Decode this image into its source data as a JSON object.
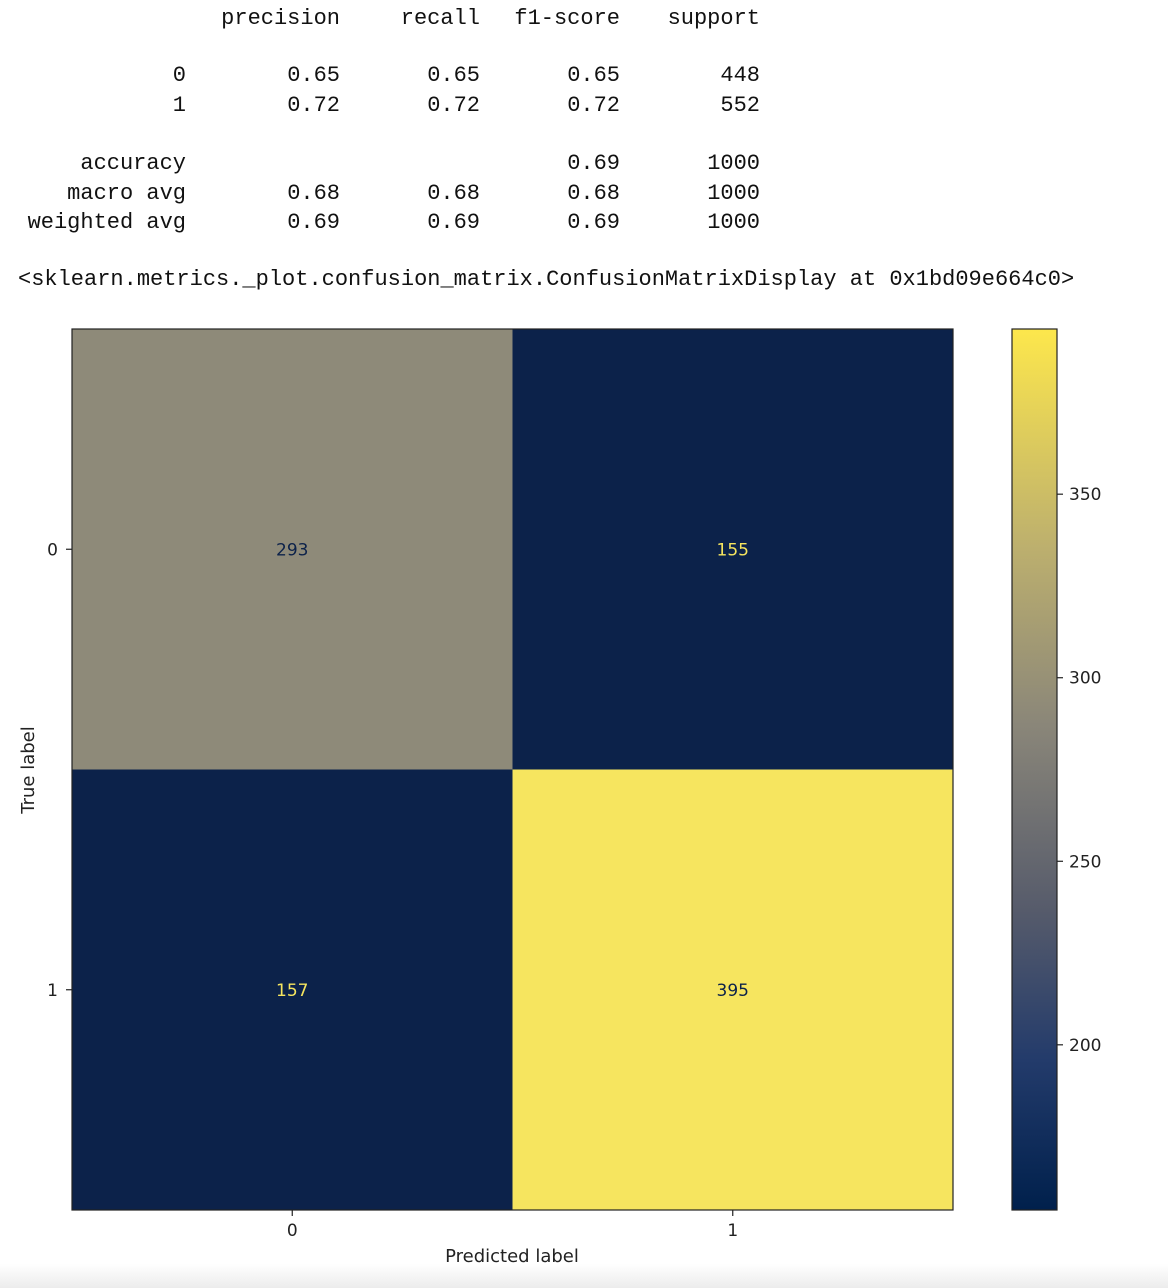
{
  "classification_report": {
    "columns": [
      "precision",
      "recall",
      "f1-score",
      "support"
    ],
    "rows": [
      {
        "label": "0",
        "precision": "0.65",
        "recall": "0.65",
        "f1": "0.65",
        "support": "448"
      },
      {
        "label": "1",
        "precision": "0.72",
        "recall": "0.72",
        "f1": "0.72",
        "support": "552"
      }
    ],
    "summary": [
      {
        "label": "accuracy",
        "precision": "",
        "recall": "",
        "f1": "0.69",
        "support": "1000"
      },
      {
        "label": "macro avg",
        "precision": "0.68",
        "recall": "0.68",
        "f1": "0.68",
        "support": "1000"
      },
      {
        "label": "weighted avg",
        "precision": "0.69",
        "recall": "0.69",
        "f1": "0.69",
        "support": "1000"
      }
    ]
  },
  "display_repr": "<sklearn.metrics._plot.confusion_matrix.ConfusionMatrixDisplay at 0x1bd09e664c0>",
  "chart_data": {
    "type": "heatmap",
    "title": "",
    "xlabel": "Predicted label",
    "ylabel": "True label",
    "x_categories": [
      "0",
      "1"
    ],
    "y_categories": [
      "0",
      "1"
    ],
    "matrix": [
      [
        293,
        155
      ],
      [
        157,
        395
      ]
    ],
    "colormap": "cividis",
    "colors": {
      "cell_293": "#8e8a79",
      "cell_155": "#0c224a",
      "cell_157": "#0c224a",
      "cell_395": "#f6e55f",
      "text_on_dark": "#f6e55f",
      "text_on_light": "#0c224a"
    },
    "colorbar": {
      "range": [
        155,
        395
      ],
      "ticks": [
        200,
        250,
        300,
        350
      ],
      "tick_labels": [
        "200",
        "250",
        "300",
        "350"
      ]
    }
  }
}
